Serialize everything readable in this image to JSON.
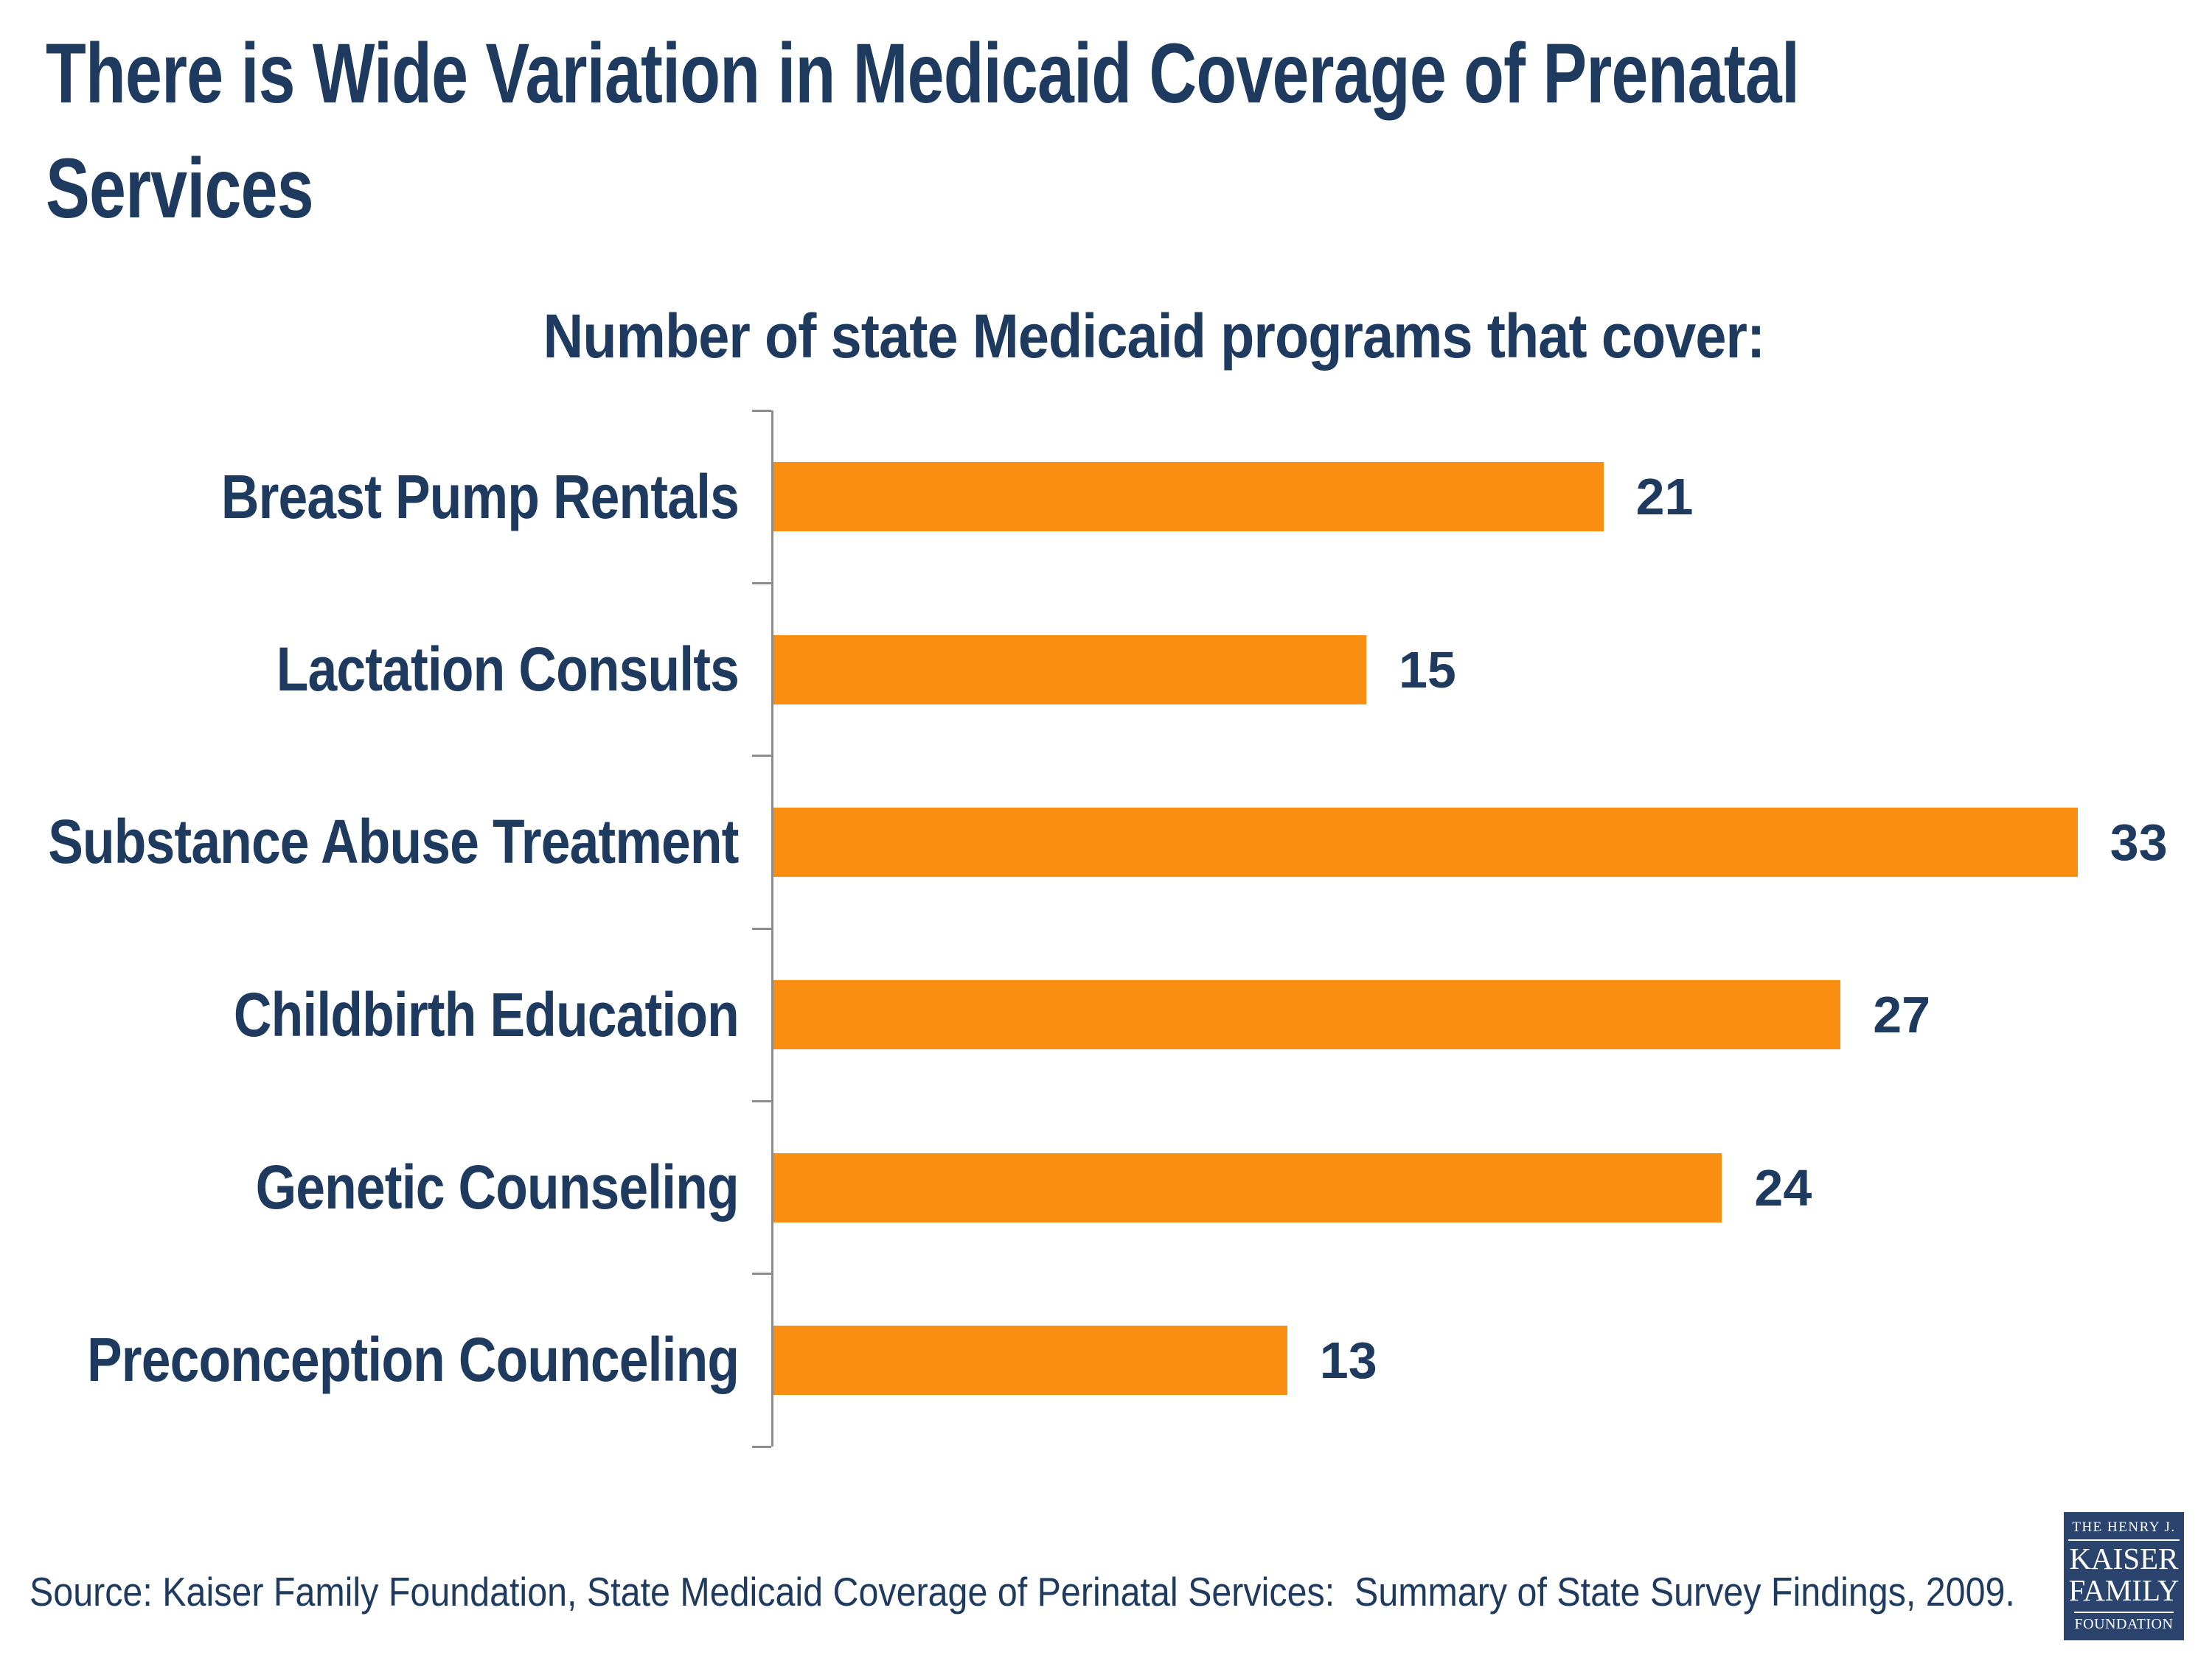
{
  "title_line1": "There is Wide Variation in Medicaid Coverage of Prenatal",
  "title_line2": "Services",
  "subtitle": "Number of state Medicaid programs that cover:",
  "source": "Source: Kaiser Family Foundation, State Medicaid Coverage of Perinatal Services:  Summary of State Survey Findings, 2009.",
  "logo": {
    "line1": "THE HENRY J.",
    "line2": "KAISER",
    "line3": "FAMILY",
    "line4": "FOUNDATION"
  },
  "colors": {
    "navy_text": "#1e3a5f",
    "bar_orange": "#f98e13",
    "axis_gray": "#8c8c8c",
    "logo_navy": "#2a446e"
  },
  "chart_data": {
    "type": "bar",
    "orientation": "horizontal",
    "title": "Number of state Medicaid programs that cover:",
    "categories": [
      "Breast Pump Rentals",
      "Lactation Consults",
      "Substance Abuse Treatment",
      "Childbirth Education",
      "Genetic Counseling",
      "Preconception Counceling"
    ],
    "values": [
      21,
      15,
      33,
      27,
      24,
      13
    ],
    "xlabel": "",
    "ylabel": "",
    "xlim": [
      0,
      36
    ],
    "bar_color": "#f98e13",
    "value_labels_shown": true,
    "grid": false,
    "legend": false
  }
}
